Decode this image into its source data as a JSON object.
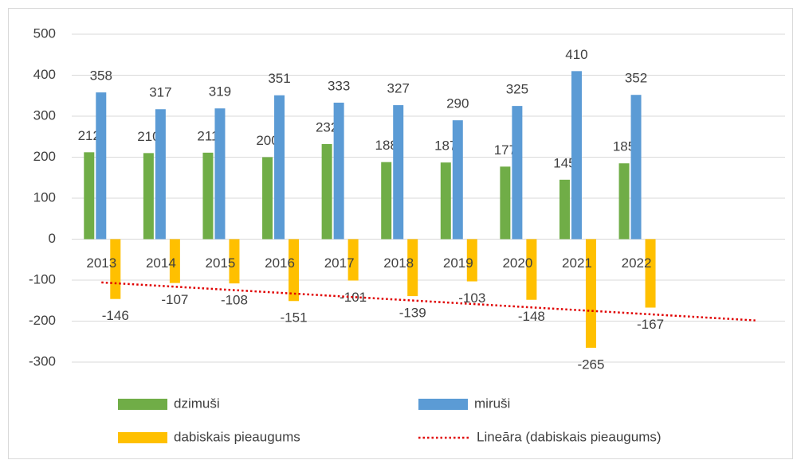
{
  "chart_data": {
    "type": "bar",
    "categories": [
      "2013",
      "2014",
      "2015",
      "2016",
      "2017",
      "2018",
      "2019",
      "2020",
      "2021",
      "2022"
    ],
    "series": [
      {
        "name": "dzimuši",
        "color": "#70ad47",
        "values": [
          212,
          210,
          211,
          200,
          232,
          188,
          187,
          177,
          145,
          185
        ]
      },
      {
        "name": "miruši",
        "color": "#5b9bd5",
        "values": [
          358,
          317,
          319,
          351,
          333,
          327,
          290,
          325,
          410,
          352
        ]
      },
      {
        "name": "dabiskais pieaugums",
        "color": "#ffc000",
        "values": [
          -146,
          -107,
          -108,
          -151,
          -101,
          -139,
          -103,
          -148,
          -265,
          -167
        ]
      }
    ],
    "trendline": {
      "name": "Lineāra (dabiskais pieaugums)",
      "color": "#e00000"
    },
    "ylim": [
      -300,
      500
    ],
    "yticks": [
      -300,
      -200,
      -100,
      0,
      100,
      200,
      300,
      400,
      500
    ],
    "grid": true
  }
}
